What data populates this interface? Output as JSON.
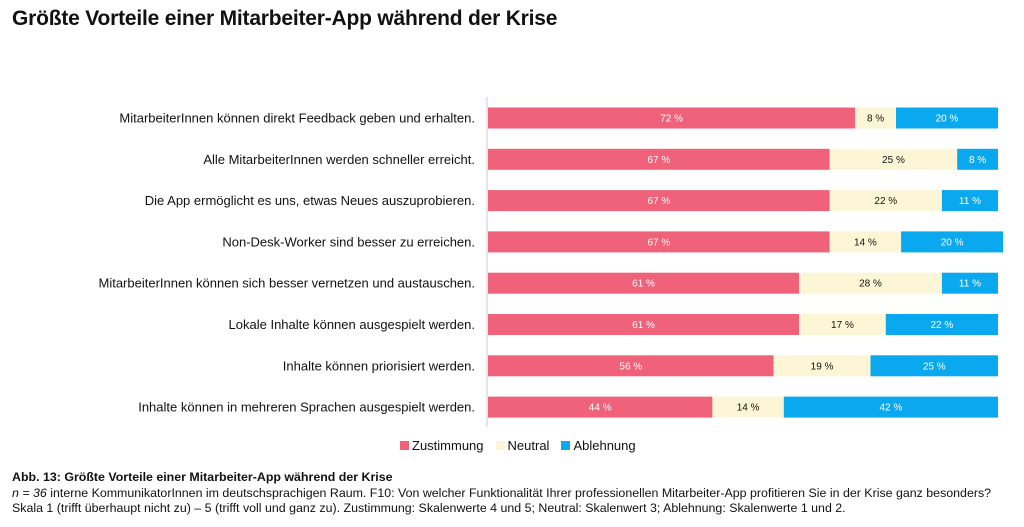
{
  "title": "Größte Vorteile einer Mitarbeiter-App während der Krise",
  "chart_data": {
    "type": "bar",
    "orientation": "horizontal",
    "stacked": true,
    "xlim": [
      0,
      100
    ],
    "grid": false,
    "legend_position": "bottom-center",
    "value_suffix": " %",
    "categories": [
      "MitarbeiterInnen können direkt Feedback geben und erhalten.",
      "Alle MitarbeiterInnen werden schneller erreicht.",
      "Die App ermöglicht es uns, etwas Neues auszuprobieren.",
      "Non-Desk-Worker sind besser zu erreichen.",
      "MitarbeiterInnen können sich besser vernetzen und austauschen.",
      "Lokale Inhalte können ausgespielt werden.",
      "Inhalte können priorisiert werden.",
      "Inhalte können in mehreren Sprachen ausgespielt werden."
    ],
    "series": [
      {
        "name": "Zustimmung",
        "color": "#f0627a",
        "label_color": "#ffffff",
        "values": [
          72,
          67,
          67,
          67,
          61,
          61,
          56,
          44
        ]
      },
      {
        "name": "Neutral",
        "color": "#fdf6d6",
        "label_color": "#111111",
        "values": [
          8,
          25,
          22,
          14,
          28,
          17,
          19,
          14
        ]
      },
      {
        "name": "Ablehnung",
        "color": "#0aa8ee",
        "label_color": "#ffffff",
        "values": [
          20,
          8,
          11,
          20,
          11,
          22,
          25,
          42
        ]
      }
    ]
  },
  "caption": {
    "heading": "Abb. 13: Größte Vorteile einer Mitarbeiter-App während der Krise",
    "n_label": "n = 36",
    "text": " interne KommunikatorInnen im deutschsprachigen Raum. F10: Von welcher Funktionalität Ihrer professionellen Mitarbeiter-App profitieren Sie in der Krise ganz besonders? Skala 1 (trifft überhaupt nicht zu) – 5 (trifft voll und ganz zu). Zustimmung: Skalenwerte 4 und 5; Neutral: Skalenwert 3; Ablehnung: Skalenwerte 1 und 2."
  }
}
